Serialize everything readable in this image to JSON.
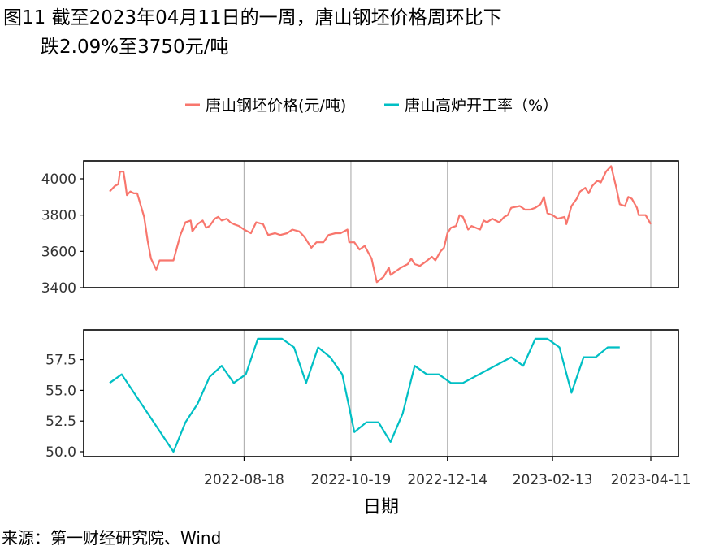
{
  "title": {
    "line1": "图11  截至2023年04月11日的一周，唐山钢坯价格周环比下",
    "line2": "跌2.09%至3750元/吨"
  },
  "source": "来源：第一财经研究院、Wind",
  "colors": {
    "price": "#F8766D",
    "utilization": "#00BFC4",
    "grid": "#b3b3b3",
    "axis": "#000000"
  },
  "chart_data": [
    {
      "type": "line",
      "series": [
        {
          "name": "唐山钢坯价格(元/吨)"
        }
      ],
      "ylim": [
        3400,
        4080
      ],
      "yticks": [
        "4000",
        "3800",
        "3600",
        "3400"
      ],
      "x_start": "2022-06-01",
      "x_end": "2023-04-11",
      "points": [
        [
          "2022-06-01",
          3930
        ],
        [
          "2022-06-04",
          3960
        ],
        [
          "2022-06-06",
          3970
        ],
        [
          "2022-06-07",
          4040
        ],
        [
          "2022-06-09",
          4040
        ],
        [
          "2022-06-10",
          3980
        ],
        [
          "2022-06-11",
          3910
        ],
        [
          "2022-06-13",
          3930
        ],
        [
          "2022-06-15",
          3920
        ],
        [
          "2022-06-17",
          3920
        ],
        [
          "2022-06-21",
          3790
        ],
        [
          "2022-06-23",
          3660
        ],
        [
          "2022-06-25",
          3560
        ],
        [
          "2022-06-28",
          3500
        ],
        [
          "2022-06-30",
          3550
        ],
        [
          "2022-07-08",
          3550
        ],
        [
          "2022-07-12",
          3690
        ],
        [
          "2022-07-15",
          3760
        ],
        [
          "2022-07-18",
          3770
        ],
        [
          "2022-07-19",
          3710
        ],
        [
          "2022-07-22",
          3750
        ],
        [
          "2022-07-25",
          3770
        ],
        [
          "2022-07-27",
          3730
        ],
        [
          "2022-07-29",
          3740
        ],
        [
          "2022-08-01",
          3780
        ],
        [
          "2022-08-03",
          3790
        ],
        [
          "2022-08-05",
          3770
        ],
        [
          "2022-08-08",
          3780
        ],
        [
          "2022-08-10",
          3760
        ],
        [
          "2022-08-12",
          3750
        ],
        [
          "2022-08-15",
          3740
        ],
        [
          "2022-08-18",
          3720
        ],
        [
          "2022-08-22",
          3700
        ],
        [
          "2022-08-25",
          3760
        ],
        [
          "2022-08-29",
          3750
        ],
        [
          "2022-09-01",
          3690
        ],
        [
          "2022-09-05",
          3700
        ],
        [
          "2022-09-08",
          3690
        ],
        [
          "2022-09-12",
          3700
        ],
        [
          "2022-09-15",
          3720
        ],
        [
          "2022-09-19",
          3710
        ],
        [
          "2022-09-22",
          3680
        ],
        [
          "2022-09-26",
          3620
        ],
        [
          "2022-09-29",
          3650
        ],
        [
          "2022-10-03",
          3650
        ],
        [
          "2022-10-06",
          3690
        ],
        [
          "2022-10-10",
          3700
        ],
        [
          "2022-10-13",
          3700
        ],
        [
          "2022-10-17",
          3720
        ],
        [
          "2022-10-18",
          3650
        ],
        [
          "2022-10-21",
          3650
        ],
        [
          "2022-10-24",
          3610
        ],
        [
          "2022-10-27",
          3630
        ],
        [
          "2022-10-31",
          3560
        ],
        [
          "2022-11-03",
          3430
        ],
        [
          "2022-11-07",
          3460
        ],
        [
          "2022-11-10",
          3510
        ],
        [
          "2022-11-11",
          3470
        ],
        [
          "2022-11-14",
          3490
        ],
        [
          "2022-11-17",
          3510
        ],
        [
          "2022-11-21",
          3530
        ],
        [
          "2022-11-23",
          3560
        ],
        [
          "2022-11-25",
          3530
        ],
        [
          "2022-11-28",
          3520
        ],
        [
          "2022-12-01",
          3540
        ],
        [
          "2022-12-05",
          3570
        ],
        [
          "2022-12-07",
          3550
        ],
        [
          "2022-12-10",
          3600
        ],
        [
          "2022-12-12",
          3620
        ],
        [
          "2022-12-14",
          3700
        ],
        [
          "2022-12-16",
          3730
        ],
        [
          "2022-12-19",
          3740
        ],
        [
          "2022-12-21",
          3800
        ],
        [
          "2022-12-23",
          3790
        ],
        [
          "2022-12-26",
          3720
        ],
        [
          "2022-12-28",
          3740
        ],
        [
          "2023-01-02",
          3720
        ],
        [
          "2023-01-04",
          3770
        ],
        [
          "2023-01-06",
          3760
        ],
        [
          "2023-01-09",
          3780
        ],
        [
          "2023-01-13",
          3760
        ],
        [
          "2023-01-16",
          3790
        ],
        [
          "2023-01-18",
          3800
        ],
        [
          "2023-01-20",
          3840
        ],
        [
          "2023-01-25",
          3850
        ],
        [
          "2023-01-28",
          3830
        ],
        [
          "2023-01-31",
          3830
        ],
        [
          "2023-02-03",
          3840
        ],
        [
          "2023-02-06",
          3860
        ],
        [
          "2023-02-08",
          3900
        ],
        [
          "2023-02-10",
          3810
        ],
        [
          "2023-02-13",
          3800
        ],
        [
          "2023-02-16",
          3780
        ],
        [
          "2023-02-20",
          3790
        ],
        [
          "2023-02-21",
          3750
        ],
        [
          "2023-02-24",
          3850
        ],
        [
          "2023-02-27",
          3890
        ],
        [
          "2023-03-01",
          3930
        ],
        [
          "2023-03-04",
          3950
        ],
        [
          "2023-03-06",
          3920
        ],
        [
          "2023-03-08",
          3960
        ],
        [
          "2023-03-11",
          3990
        ],
        [
          "2023-03-13",
          3980
        ],
        [
          "2023-03-16",
          4040
        ],
        [
          "2023-03-19",
          4070
        ],
        [
          "2023-03-22",
          3950
        ],
        [
          "2023-03-24",
          3860
        ],
        [
          "2023-03-27",
          3850
        ],
        [
          "2023-03-29",
          3900
        ],
        [
          "2023-03-31",
          3890
        ],
        [
          "2023-04-03",
          3840
        ],
        [
          "2023-04-04",
          3800
        ],
        [
          "2023-04-08",
          3800
        ],
        [
          "2023-04-11",
          3750
        ]
      ]
    },
    {
      "type": "line",
      "series": [
        {
          "name": "唐山高炉开工率（%）"
        }
      ],
      "ylim": [
        49.95,
        59.25
      ],
      "yticks": [
        "57.5",
        "55.0",
        "52.5",
        "50.0"
      ],
      "x_start": "2022-06-01",
      "x_end": "2023-04-11",
      "points": [
        [
          "2022-06-01",
          55.6
        ],
        [
          "2022-06-08",
          56.3
        ],
        [
          "2022-07-08",
          50.0
        ],
        [
          "2022-07-15",
          52.4
        ],
        [
          "2022-07-22",
          53.9
        ],
        [
          "2022-07-29",
          56.1
        ],
        [
          "2022-08-05",
          57.0
        ],
        [
          "2022-08-12",
          55.6
        ],
        [
          "2022-08-19",
          56.3
        ],
        [
          "2022-08-26",
          59.2
        ],
        [
          "2022-09-09",
          59.2
        ],
        [
          "2022-09-16",
          58.5
        ],
        [
          "2022-09-23",
          55.6
        ],
        [
          "2022-09-30",
          58.5
        ],
        [
          "2022-10-07",
          57.7
        ],
        [
          "2022-10-14",
          56.3
        ],
        [
          "2022-10-21",
          51.6
        ],
        [
          "2022-10-28",
          52.4
        ],
        [
          "2022-11-04",
          52.4
        ],
        [
          "2022-11-11",
          50.8
        ],
        [
          "2022-11-18",
          53.1
        ],
        [
          "2022-11-25",
          57.0
        ],
        [
          "2022-12-02",
          56.3
        ],
        [
          "2022-12-09",
          56.3
        ],
        [
          "2022-12-16",
          55.6
        ],
        [
          "2022-12-23",
          55.6
        ],
        [
          "2023-01-20",
          57.7
        ],
        [
          "2023-01-27",
          57.0
        ],
        [
          "2023-02-03",
          59.2
        ],
        [
          "2023-02-10",
          59.2
        ],
        [
          "2023-02-17",
          58.5
        ],
        [
          "2023-02-24",
          54.8
        ],
        [
          "2023-03-03",
          57.7
        ],
        [
          "2023-03-10",
          57.7
        ],
        [
          "2023-03-17",
          58.5
        ],
        [
          "2023-03-24",
          58.5
        ]
      ]
    }
  ],
  "x_axis": {
    "title": "日期",
    "ticks": [
      "2022-08-18",
      "2022-10-19",
      "2022-12-14",
      "2023-02-13",
      "2023-04-11"
    ]
  }
}
